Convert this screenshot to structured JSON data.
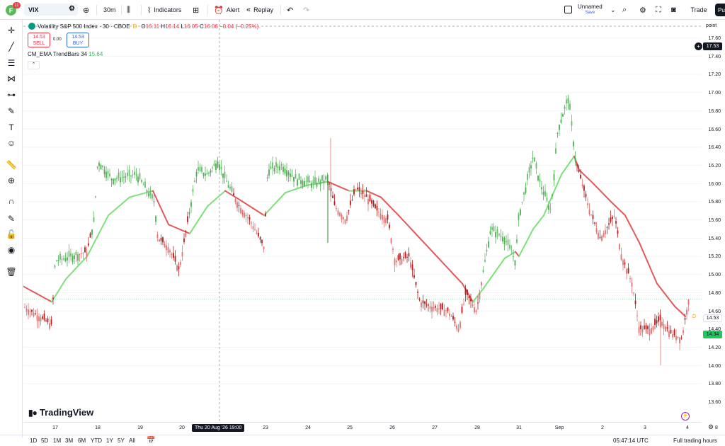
{
  "topbar": {
    "avatar_letter": "F",
    "notification_count": "11",
    "symbol": "VIX",
    "interval": "30m",
    "indicators_label": "Indicators",
    "alert_label": "Alert",
    "replay_label": "Replay",
    "layout_name": "Unnamed",
    "layout_status": "Save",
    "trade_label": "Trade",
    "publish_label": "Pu"
  },
  "legend": {
    "title": "Volatility S&P 500 Index · 30 · CBOE",
    "status_letter": "D",
    "open_label": "O",
    "open": "16.11",
    "high_label": "H",
    "high": "16.14",
    "low_label": "L",
    "low": "16.05",
    "close_label": "C",
    "close": "16.06",
    "change": "−0.04 (−0.25%)",
    "sell_price": "14.53",
    "sell_label": "SELL",
    "spread": "0.00",
    "buy_price": "14.53",
    "buy_label": "BUY",
    "indicator_name": "CM_EMA TrendBars 34",
    "indicator_value": "15.64"
  },
  "price_axis": {
    "unit": "point",
    "ticks": [
      "17.60",
      "17.40",
      "17.20",
      "17.00",
      "16.80",
      "16.60",
      "16.40",
      "16.20",
      "16.00",
      "15.80",
      "15.60",
      "15.40",
      "15.20",
      "15.00",
      "14.80",
      "14.60",
      "14.40",
      "14.20",
      "14.00",
      "13.80",
      "13.60"
    ],
    "crosshair_price": "17.53",
    "last_price": "14.53",
    "ema_price": "14.34"
  },
  "time_axis": {
    "ticks": [
      "17",
      "18",
      "19",
      "20",
      "23",
      "24",
      "25",
      "26",
      "27",
      "28",
      "31",
      "Sep",
      "2",
      "3",
      "4",
      "8"
    ],
    "crosshair_label": "Thu 20 Aug '26   19:00"
  },
  "bottombar": {
    "ranges": [
      "1D",
      "5D",
      "1M",
      "3M",
      "6M",
      "YTD",
      "1Y",
      "5Y",
      "All"
    ],
    "clock": "05:47:14 UTC",
    "session": "Full trading hours"
  },
  "branding": {
    "logo_text": "TradingView"
  },
  "colors": {
    "up": "#089981",
    "down": "#f23645",
    "ema_up": "#7ee07a",
    "ema_down": "#e5585a",
    "accent": "#2962ff"
  },
  "chart_data": {
    "type": "line",
    "title": "Volatility S&P 500 Index · 30 · CBOE",
    "ylabel": "point",
    "ylim": [
      13.5,
      17.7
    ],
    "x": [
      "17",
      "18",
      "19",
      "20",
      "23",
      "24",
      "25",
      "26",
      "27",
      "28",
      "31",
      "Sep",
      "2",
      "3",
      "4",
      "8"
    ],
    "series": [
      {
        "name": "CM_EMA TrendBars 34",
        "values": [
          14.55,
          14.95,
          15.7,
          15.25,
          15.75,
          15.6,
          15.8,
          15.72,
          15.65,
          15.1,
          14.6,
          15.0,
          16.15,
          15.45,
          14.75,
          14.5
        ]
      }
    ]
  }
}
